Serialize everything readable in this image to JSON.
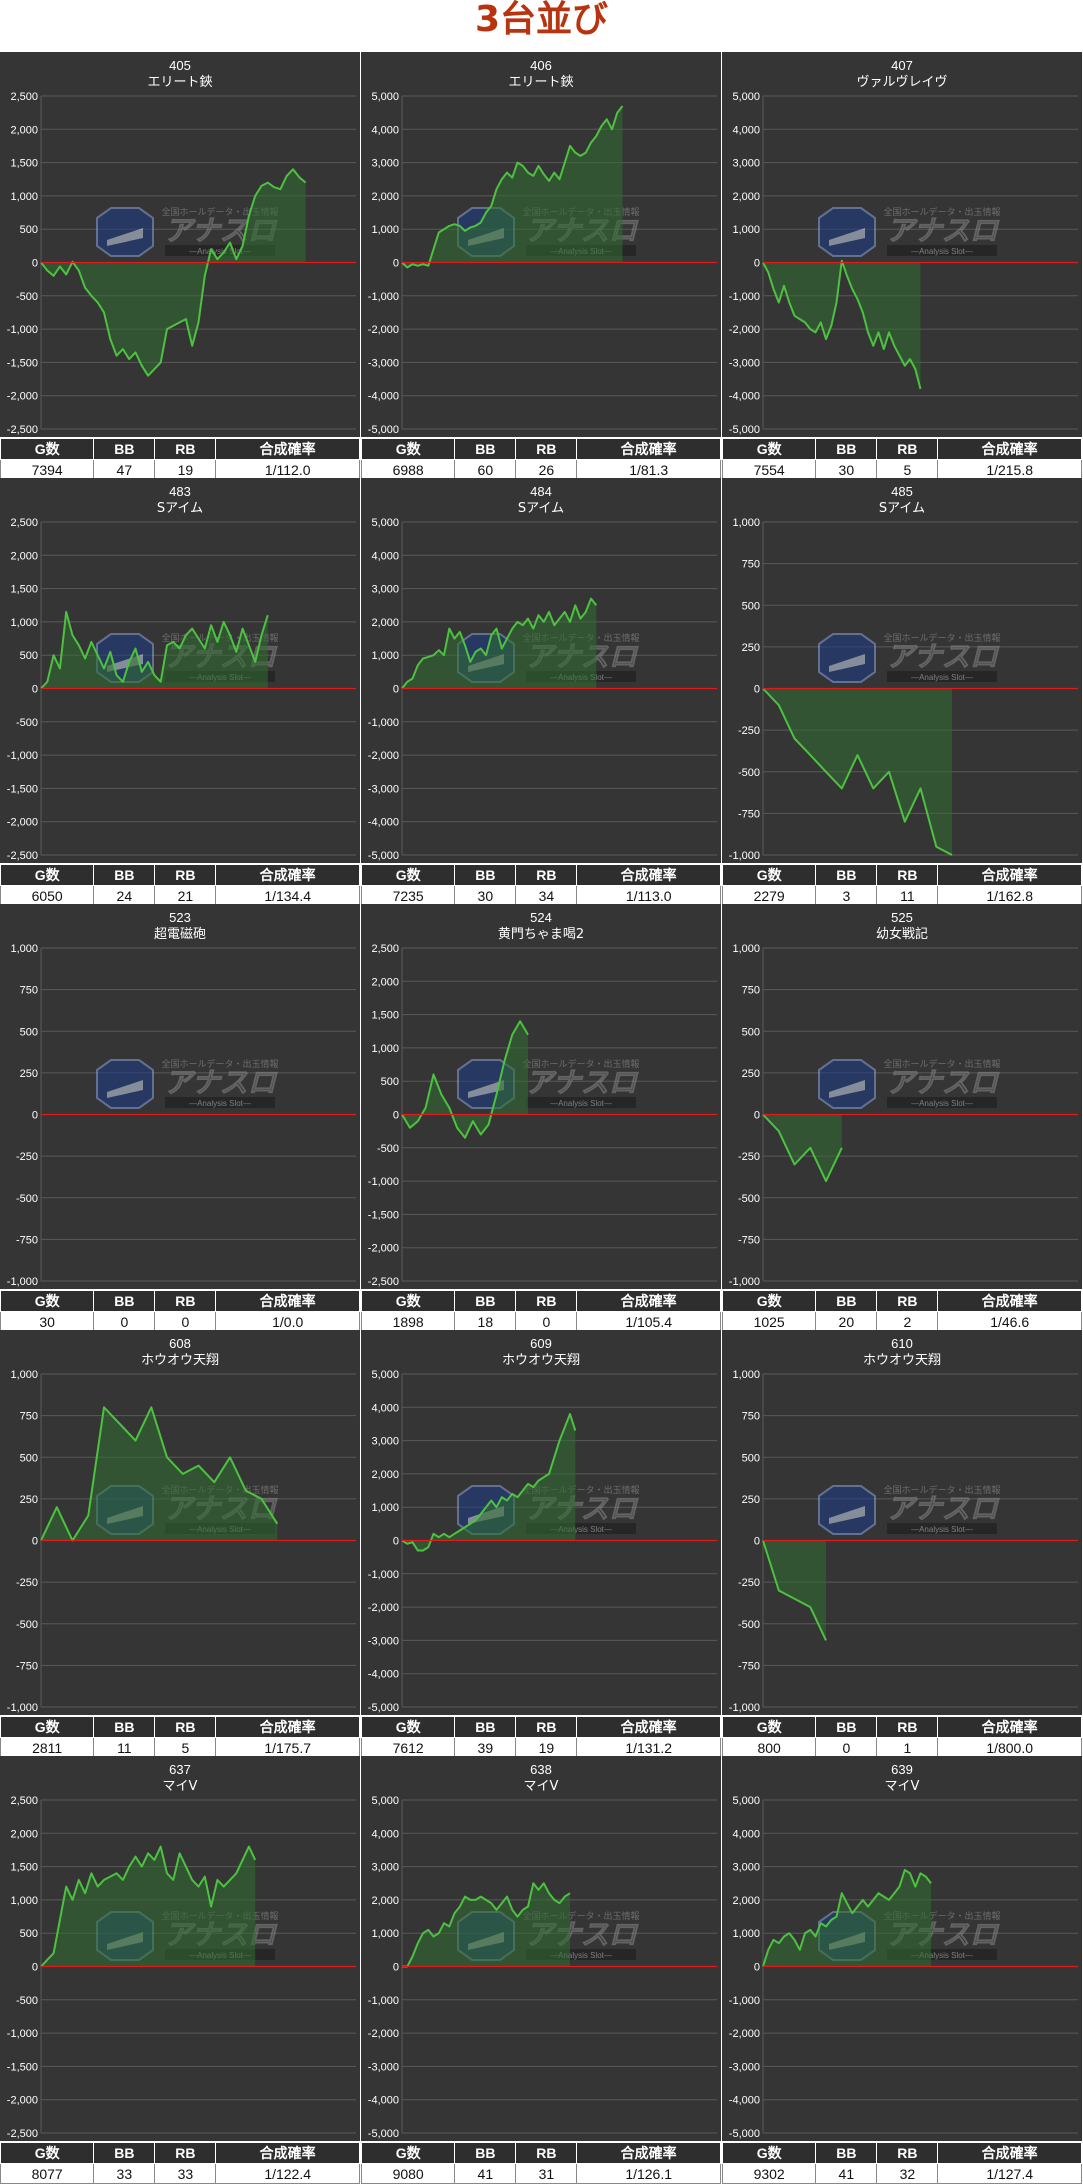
{
  "page": {
    "title": "3台並び"
  },
  "watermark": {
    "brand": "アナスロ",
    "tagline": "—Analysis Slot—",
    "topline": "全国ホールデータ・出玉情報"
  },
  "table_headers": [
    "G数",
    "BB",
    "RB",
    "合成確率"
  ],
  "colors": {
    "panel_bg": "#353535",
    "grid": "#5a5a5a",
    "zero_line": "#e01b1b",
    "line": "#4cc240",
    "fill": "#2f6e30",
    "title_text": "#b8330f"
  },
  "chart_data": [
    {
      "type": "area",
      "machine_no": "405",
      "machine_name": "エリート鋏",
      "ylim": [
        -2500,
        2500
      ],
      "yticks": [
        "2,500",
        "2,000",
        "1,500",
        "1,000",
        "500",
        "0",
        "-500",
        "-1,000",
        "-1,500",
        "-2,000",
        "-2,500"
      ],
      "x_max": 50,
      "values": [
        0,
        -120,
        -200,
        -60,
        -180,
        10,
        -120,
        -380,
        -500,
        -600,
        -750,
        -1150,
        -1400,
        -1300,
        -1450,
        -1350,
        -1550,
        -1700,
        -1600,
        -1500,
        -1000,
        -950,
        -900,
        -850,
        -1250,
        -900,
        -200,
        200,
        50,
        150,
        300,
        50,
        250,
        700,
        1000,
        1150,
        1200,
        1130,
        1100,
        1300,
        1400,
        1280,
        1200
      ],
      "stats": {
        "g": "7394",
        "bb": "47",
        "rb": "19",
        "rate": "1/112.0"
      }
    },
    {
      "type": "area",
      "machine_no": "406",
      "machine_name": "エリート鋏",
      "ylim": [
        -5000,
        5000
      ],
      "yticks": [
        "5,000",
        "4,000",
        "3,000",
        "2,000",
        "1,000",
        "0",
        "-1,000",
        "-2,000",
        "-3,000",
        "-4,000",
        "-5,000"
      ],
      "x_max": 60,
      "values": [
        0,
        -150,
        -50,
        -100,
        -50,
        -100,
        400,
        900,
        1000,
        1100,
        1150,
        1100,
        950,
        1050,
        1100,
        1200,
        1500,
        1700,
        2200,
        2500,
        2700,
        2550,
        3000,
        2900,
        2700,
        2600,
        2900,
        2650,
        2450,
        2700,
        2500,
        3000,
        3500,
        3300,
        3200,
        3300,
        3600,
        3800,
        4100,
        4300,
        4000,
        4500,
        4700
      ],
      "stats": {
        "g": "6988",
        "bb": "60",
        "rb": "26",
        "rate": "1/81.3"
      }
    },
    {
      "type": "area",
      "machine_no": "407",
      "machine_name": "ヴァルヴレイヴ",
      "ylim": [
        -5000,
        5000
      ],
      "yticks": [
        "5,000",
        "4,000",
        "3,000",
        "2,000",
        "1,000",
        "0",
        "-1,000",
        "-2,000",
        "-3,000",
        "-4,000",
        "-5,000"
      ],
      "x_max": 60,
      "values": [
        0,
        -300,
        -800,
        -1200,
        -700,
        -1200,
        -1600,
        -1700,
        -1800,
        -2000,
        -2100,
        -1800,
        -2300,
        -1900,
        -1200,
        50,
        -400,
        -800,
        -1100,
        -1500,
        -2100,
        -2500,
        -2100,
        -2600,
        -2100,
        -2500,
        -2800,
        -3100,
        -2900,
        -3200,
        -3800
      ],
      "stats": {
        "g": "7554",
        "bb": "30",
        "rb": "5",
        "rate": "1/215.8"
      }
    },
    {
      "type": "area",
      "machine_no": "483",
      "machine_name": "Sアイム",
      "ylim": [
        -2500,
        2500
      ],
      "yticks": [
        "2,500",
        "2,000",
        "1,500",
        "1,000",
        "500",
        "0",
        "-500",
        "-1,000",
        "-1,500",
        "-2,000",
        "-2,500"
      ],
      "x_max": 50,
      "values": [
        0,
        100,
        500,
        300,
        1150,
        800,
        650,
        450,
        700,
        500,
        300,
        550,
        200,
        100,
        400,
        600,
        250,
        400,
        200,
        100,
        650,
        700,
        600,
        800,
        900,
        750,
        600,
        950,
        700,
        1000,
        800,
        550,
        900,
        650,
        400,
        800,
        1100
      ],
      "stats": {
        "g": "6050",
        "bb": "24",
        "rb": "21",
        "rate": "1/134.4"
      }
    },
    {
      "type": "area",
      "machine_no": "484",
      "machine_name": "Sアイム",
      "ylim": [
        -5000,
        5000
      ],
      "yticks": [
        "5,000",
        "4,000",
        "3,000",
        "2,000",
        "1,000",
        "0",
        "-1,000",
        "-2,000",
        "-3,000",
        "-4,000",
        "-5,000"
      ],
      "x_max": 60,
      "values": [
        0,
        200,
        300,
        700,
        900,
        950,
        1000,
        1150,
        1000,
        1800,
        1500,
        1700,
        1300,
        800,
        1100,
        1200,
        1000,
        1600,
        1800,
        1200,
        1500,
        1800,
        2000,
        1900,
        2100,
        1800,
        2200,
        2000,
        2300,
        1900,
        2100,
        2300,
        2000,
        2500,
        2100,
        2300,
        2700,
        2500
      ],
      "stats": {
        "g": "7235",
        "bb": "30",
        "rb": "34",
        "rate": "1/113.0"
      }
    },
    {
      "type": "area",
      "machine_no": "485",
      "machine_name": "Sアイム",
      "ylim": [
        -1000,
        1000
      ],
      "yticks": [
        "1,000",
        "750",
        "500",
        "250",
        "0",
        "-250",
        "-500",
        "-750",
        "-1,000"
      ],
      "x_max": 20,
      "values": [
        0,
        -100,
        -300,
        -400,
        -500,
        -600,
        -400,
        -600,
        -500,
        -800,
        -600,
        -950,
        -1000
      ],
      "stats": {
        "g": "2279",
        "bb": "3",
        "rb": "11",
        "rate": "1/162.8"
      }
    },
    {
      "type": "area",
      "machine_no": "523",
      "machine_name": "超電磁砲",
      "ylim": [
        -1000,
        1000
      ],
      "yticks": [
        "1,000",
        "750",
        "500",
        "250",
        "0",
        "-250",
        "-500",
        "-750",
        "-1,000"
      ],
      "x_max": 20,
      "values": [],
      "stats": {
        "g": "30",
        "bb": "0",
        "rb": "0",
        "rate": "1/0.0"
      }
    },
    {
      "type": "area",
      "machine_no": "524",
      "machine_name": "黄門ちゃま喝2",
      "ylim": [
        -2500,
        2500
      ],
      "yticks": [
        "2,500",
        "2,000",
        "1,500",
        "1,000",
        "500",
        "0",
        "-500",
        "-1,000",
        "-1,500",
        "-2,000",
        "-2,500"
      ],
      "x_max": 40,
      "values": [
        0,
        -200,
        -100,
        100,
        600,
        300,
        100,
        -200,
        -350,
        -100,
        -300,
        -150,
        300,
        800,
        1200,
        1400,
        1200
      ],
      "stats": {
        "g": "1898",
        "bb": "18",
        "rb": "0",
        "rate": "1/105.4"
      }
    },
    {
      "type": "area",
      "machine_no": "525",
      "machine_name": "幼女戦記",
      "ylim": [
        -1000,
        1000
      ],
      "yticks": [
        "1,000",
        "750",
        "500",
        "250",
        "0",
        "-250",
        "-500",
        "-750",
        "-1,000"
      ],
      "x_max": 20,
      "values": [
        0,
        -100,
        -300,
        -200,
        -400,
        -200
      ],
      "stats": {
        "g": "1025",
        "bb": "20",
        "rb": "2",
        "rate": "1/46.6"
      }
    },
    {
      "type": "area",
      "machine_no": "608",
      "machine_name": "ホウオウ天翔",
      "ylim": [
        -1000,
        1000
      ],
      "yticks": [
        "1,000",
        "750",
        "500",
        "250",
        "0",
        "-250",
        "-500",
        "-750",
        "-1,000"
      ],
      "x_max": 20,
      "values": [
        0,
        200,
        0,
        150,
        800,
        700,
        600,
        800,
        500,
        400,
        450,
        350,
        500,
        300,
        250,
        100
      ],
      "stats": {
        "g": "2811",
        "bb": "11",
        "rb": "5",
        "rate": "1/175.7"
      }
    },
    {
      "type": "area",
      "machine_no": "609",
      "machine_name": "ホウオウ天翔",
      "ylim": [
        -5000,
        5000
      ],
      "yticks": [
        "5,000",
        "4,000",
        "3,000",
        "2,000",
        "1,000",
        "0",
        "-1,000",
        "-2,000",
        "-3,000",
        "-4,000",
        "-5,000"
      ],
      "x_max": 60,
      "values": [
        0,
        -100,
        -50,
        -300,
        -300,
        -200,
        200,
        100,
        200,
        100,
        200,
        300,
        400,
        500,
        600,
        800,
        1000,
        1200,
        1000,
        1300,
        1200,
        1400,
        1300,
        1500,
        1700,
        1600,
        1800,
        1900,
        2000,
        2500,
        3000,
        3400,
        3800,
        3300
      ],
      "stats": {
        "g": "7612",
        "bb": "39",
        "rb": "19",
        "rate": "1/131.2"
      }
    },
    {
      "type": "area",
      "machine_no": "610",
      "machine_name": "ホウオウ天翔",
      "ylim": [
        -1000,
        1000
      ],
      "yticks": [
        "1,000",
        "750",
        "500",
        "250",
        "0",
        "-250",
        "-500",
        "-750",
        "-1,000"
      ],
      "x_max": 20,
      "values": [
        0,
        -300,
        -350,
        -400,
        -600
      ],
      "stats": {
        "g": "800",
        "bb": "0",
        "rb": "1",
        "rate": "1/800.0"
      }
    },
    {
      "type": "area",
      "machine_no": "637",
      "machine_name": "マイV",
      "ylim": [
        -2500,
        2500
      ],
      "yticks": [
        "2,500",
        "2,000",
        "1,500",
        "1,000",
        "500",
        "0",
        "-500",
        "-1,000",
        "-1,500",
        "-2,000",
        "-2,500"
      ],
      "x_max": 50,
      "values": [
        0,
        100,
        200,
        700,
        1200,
        1000,
        1300,
        1100,
        1400,
        1200,
        1300,
        1350,
        1400,
        1300,
        1500,
        1650,
        1500,
        1700,
        1600,
        1800,
        1400,
        1300,
        1700,
        1500,
        1300,
        1200,
        1350,
        900,
        1300,
        1200,
        1300,
        1400,
        1600,
        1800,
        1600
      ],
      "stats": {
        "g": "8077",
        "bb": "33",
        "rb": "33",
        "rate": "1/122.4"
      }
    },
    {
      "type": "area",
      "machine_no": "638",
      "machine_name": "マイV",
      "ylim": [
        -5000,
        5000
      ],
      "yticks": [
        "5,000",
        "4,000",
        "3,000",
        "2,000",
        "1,000",
        "0",
        "-1,000",
        "-2,000",
        "-3,000",
        "-4,000",
        "-5,000"
      ],
      "x_max": 60,
      "values": [
        0,
        0,
        300,
        700,
        1000,
        1100,
        900,
        1000,
        1300,
        1200,
        1600,
        1800,
        2100,
        2000,
        2000,
        2100,
        2000,
        1900,
        1700,
        1900,
        2100,
        1700,
        1500,
        1700,
        1800,
        2500,
        2300,
        2500,
        2200,
        2000,
        1900,
        2100,
        2200
      ],
      "stats": {
        "g": "9080",
        "bb": "41",
        "rb": "31",
        "rate": "1/126.1"
      }
    },
    {
      "type": "area",
      "machine_no": "639",
      "machine_name": "マイV",
      "ylim": [
        -5000,
        5000
      ],
      "yticks": [
        "5,000",
        "4,000",
        "3,000",
        "2,000",
        "1,000",
        "0",
        "-1,000",
        "-2,000",
        "-3,000",
        "-4,000",
        "-5,000"
      ],
      "x_max": 60,
      "values": [
        0,
        500,
        800,
        700,
        900,
        1000,
        800,
        500,
        1000,
        1100,
        900,
        1300,
        1200,
        1400,
        1500,
        2200,
        1900,
        1600,
        1800,
        2000,
        1800,
        2000,
        2200,
        2100,
        2000,
        2200,
        2400,
        2900,
        2800,
        2400,
        2800,
        2700,
        2500
      ],
      "stats": {
        "g": "9302",
        "bb": "41",
        "rb": "32",
        "rate": "1/127.4"
      }
    }
  ]
}
